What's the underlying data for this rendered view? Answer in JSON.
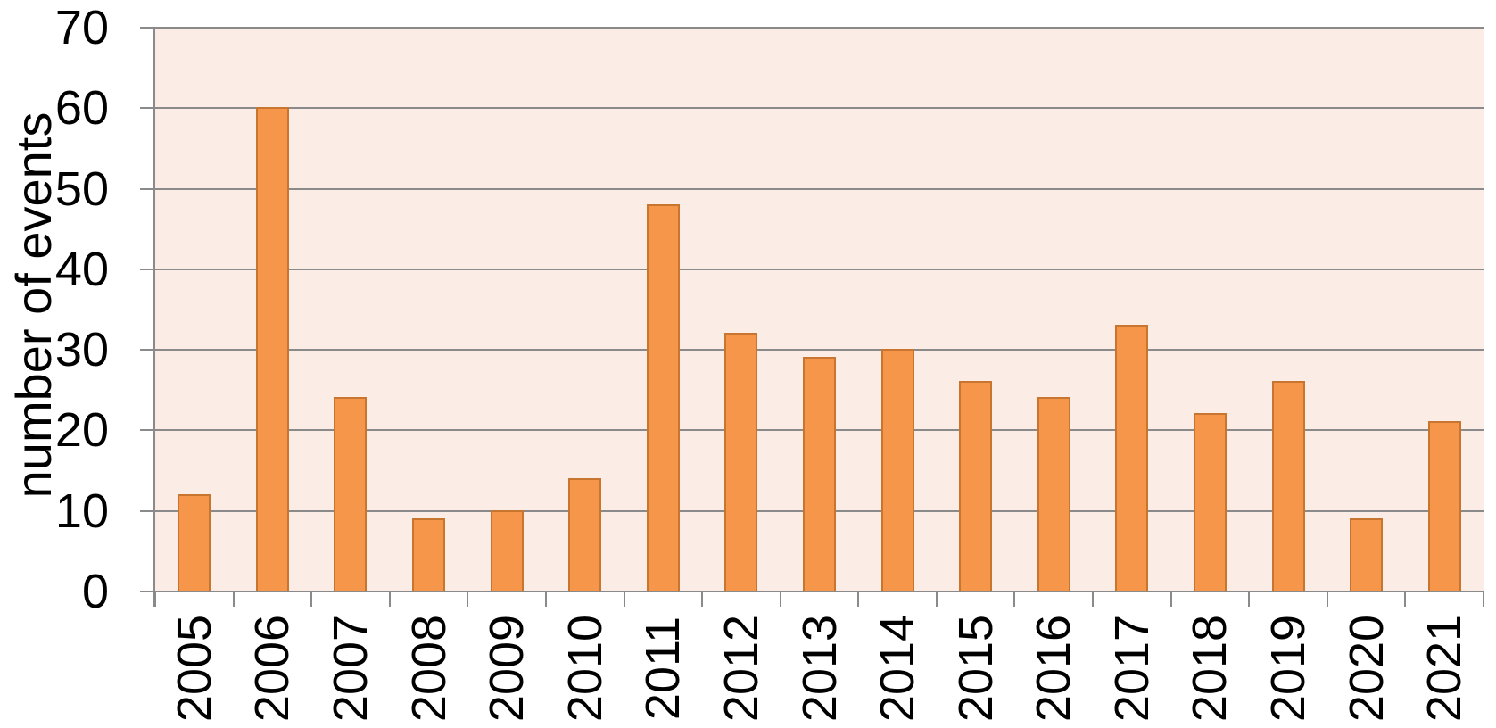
{
  "chart_data": {
    "type": "bar",
    "title": "",
    "xlabel": "",
    "ylabel": "number of events",
    "categories": [
      "2005",
      "2006",
      "2007",
      "2008",
      "2009",
      "2010",
      "2011",
      "2012",
      "2013",
      "2014",
      "2015",
      "2016",
      "2017",
      "2018",
      "2019",
      "2020",
      "2021"
    ],
    "values": [
      12,
      60,
      24,
      9,
      10,
      14,
      48,
      32,
      29,
      30,
      26,
      24,
      33,
      22,
      26,
      9,
      21
    ],
    "ylim": [
      0,
      70
    ],
    "yticks": [
      0,
      10,
      20,
      30,
      40,
      50,
      60,
      70
    ],
    "grid": true,
    "legend": false,
    "colors": {
      "bar_fill": "#F5964A",
      "bar_border": "#C8762F",
      "plot_bg": "#FBECE5",
      "gridline": "#8A8A8A",
      "axis": "#8A8A8A",
      "text": "#000000"
    }
  }
}
